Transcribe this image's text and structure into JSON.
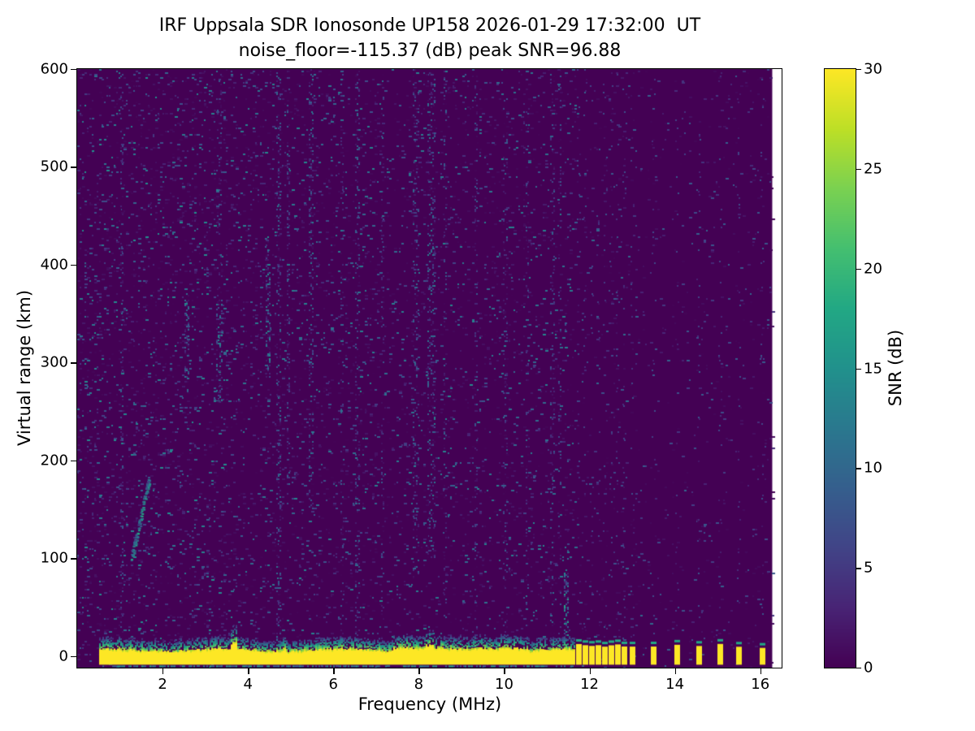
{
  "chart_data": {
    "type": "heatmap",
    "title": "IRF Uppsala SDR Ionosonde UP158 2026-01-29 17:32:00  UT",
    "subtitle": "noise_floor=-115.37 (dB) peak SNR=96.88",
    "xlabel": "Frequency (MHz)",
    "ylabel": "Virtual range (km)",
    "colorbar_label": "SNR (dB)",
    "meta": {
      "station": "UP158",
      "timestamp_ut": "2026-01-29 17:32:00",
      "noise_floor_db": -115.37,
      "peak_snr_db": 96.88
    },
    "xlim": [
      0,
      16.5
    ],
    "ylim": [
      -12,
      600
    ],
    "xticks": [
      2,
      4,
      6,
      8,
      10,
      12,
      14,
      16
    ],
    "yticks": [
      0,
      100,
      200,
      300,
      400,
      500,
      600
    ],
    "colorbar_ticks": [
      0,
      5,
      10,
      15,
      20,
      25,
      30
    ],
    "snr_range": [
      0,
      30
    ],
    "grid": false,
    "legend": false,
    "colormap": "viridis",
    "colormap_stops": [
      [
        0.0,
        "#440154"
      ],
      [
        0.1,
        "#482475"
      ],
      [
        0.2,
        "#414487"
      ],
      [
        0.3,
        "#355f8d"
      ],
      [
        0.4,
        "#2a788e"
      ],
      [
        0.5,
        "#21918c"
      ],
      [
        0.6,
        "#22a884"
      ],
      [
        0.7,
        "#44bf70"
      ],
      [
        0.8,
        "#7ad151"
      ],
      [
        0.9,
        "#bddf26"
      ],
      [
        1.0,
        "#fde725"
      ]
    ],
    "data_fmin": 0.45,
    "data_fmax": 16.28,
    "noise": {
      "seed": 7,
      "base": 0.05,
      "vmax": 13,
      "bands": [
        {
          "f0": 0.0,
          "f1": 3.5,
          "density": 0.1,
          "vmax": 14
        },
        {
          "f0": 3.5,
          "f1": 7.0,
          "density": 0.075,
          "vmax": 13
        },
        {
          "f0": 7.0,
          "f1": 11.7,
          "density": 0.065,
          "vmax": 13
        },
        {
          "f0": 11.7,
          "f1": 13.3,
          "density": 0.035,
          "vmax": 10
        },
        {
          "f0": 13.3,
          "f1": 16.3,
          "density": 0.022,
          "vmax": 9
        }
      ]
    },
    "ground_band": {
      "f0": 0.52,
      "f1": 11.65,
      "bottom": -9,
      "base_top": 10,
      "peak_snr": 30,
      "bumps": [
        {
          "f0": 2.9,
          "f1": 3.0,
          "h": 12
        },
        {
          "f0": 3.58,
          "f1": 3.72,
          "h": 26
        },
        {
          "f0": 4.78,
          "f1": 4.88,
          "h": 16
        },
        {
          "f0": 6.4,
          "f1": 6.55,
          "h": 13
        },
        {
          "f0": 7.4,
          "f1": 8.6,
          "h": 16
        },
        {
          "f0": 8.1,
          "f1": 8.35,
          "h": 20
        },
        {
          "f0": 9.2,
          "f1": 10.6,
          "h": 15
        },
        {
          "f0": 10.9,
          "f1": 11.5,
          "h": 13
        }
      ]
    },
    "pulse_freqs": [
      11.75,
      11.9,
      12.05,
      12.2,
      12.35,
      12.5,
      12.65,
      12.8,
      13.0,
      13.5,
      14.05,
      14.55,
      15.05,
      15.5,
      16.05
    ],
    "pulse_top_km": 10,
    "rfi_stripes": [
      {
        "f": 1.05,
        "w": 0.06,
        "k0": -10,
        "k1": 600,
        "d": 0.18,
        "v": 10
      },
      {
        "f": 2.57,
        "w": 0.1,
        "k0": 280,
        "k1": 370,
        "d": 0.3,
        "v": 13
      },
      {
        "f": 3.32,
        "w": 0.1,
        "k0": 260,
        "k1": 360,
        "d": 0.3,
        "v": 14
      },
      {
        "f": 3.32,
        "w": 0.07,
        "k0": 360,
        "k1": 600,
        "d": 0.12,
        "v": 9
      },
      {
        "f": 4.47,
        "w": 0.1,
        "k0": 285,
        "k1": 430,
        "d": 0.38,
        "v": 15
      },
      {
        "f": 4.72,
        "w": 0.08,
        "k0": 0,
        "k1": 600,
        "d": 0.22,
        "v": 12
      },
      {
        "f": 4.95,
        "w": 0.06,
        "k0": 150,
        "k1": 600,
        "d": 0.15,
        "v": 10
      },
      {
        "f": 5.48,
        "w": 0.08,
        "k0": 150,
        "k1": 600,
        "d": 0.25,
        "v": 13
      },
      {
        "f": 6.2,
        "w": 0.06,
        "k0": 0,
        "k1": 600,
        "d": 0.12,
        "v": 9
      },
      {
        "f": 6.55,
        "w": 0.07,
        "k0": 0,
        "k1": 600,
        "d": 0.15,
        "v": 11
      },
      {
        "f": 7.15,
        "w": 0.06,
        "k0": 0,
        "k1": 600,
        "d": 0.12,
        "v": 9
      },
      {
        "f": 7.92,
        "w": 0.12,
        "k0": 80,
        "k1": 600,
        "d": 0.18,
        "v": 11
      },
      {
        "f": 8.3,
        "w": 0.18,
        "k0": 100,
        "k1": 600,
        "d": 0.22,
        "v": 13
      },
      {
        "f": 8.62,
        "w": 0.07,
        "k0": 0,
        "k1": 600,
        "d": 0.14,
        "v": 10
      },
      {
        "f": 9.35,
        "w": 0.06,
        "k0": 0,
        "k1": 600,
        "d": 0.13,
        "v": 10
      },
      {
        "f": 10.02,
        "w": 0.07,
        "k0": 0,
        "k1": 600,
        "d": 0.15,
        "v": 11
      },
      {
        "f": 10.55,
        "w": 0.06,
        "k0": 0,
        "k1": 600,
        "d": 0.12,
        "v": 9
      },
      {
        "f": 11.12,
        "w": 0.07,
        "k0": 0,
        "k1": 600,
        "d": 0.14,
        "v": 10
      },
      {
        "f": 11.3,
        "w": 0.06,
        "k0": 0,
        "k1": 600,
        "d": 0.13,
        "v": 10
      },
      {
        "f": 11.45,
        "w": 0.08,
        "k0": 20,
        "k1": 90,
        "d": 0.5,
        "v": 18
      }
    ],
    "echo_trace": {
      "points": [
        [
          1.27,
          100
        ],
        [
          1.33,
          112
        ],
        [
          1.38,
          122
        ],
        [
          1.45,
          135
        ],
        [
          1.52,
          150
        ],
        [
          1.58,
          163
        ],
        [
          1.64,
          174
        ],
        [
          1.68,
          182
        ]
      ],
      "snr_min": 8,
      "snr_max": 20
    }
  }
}
